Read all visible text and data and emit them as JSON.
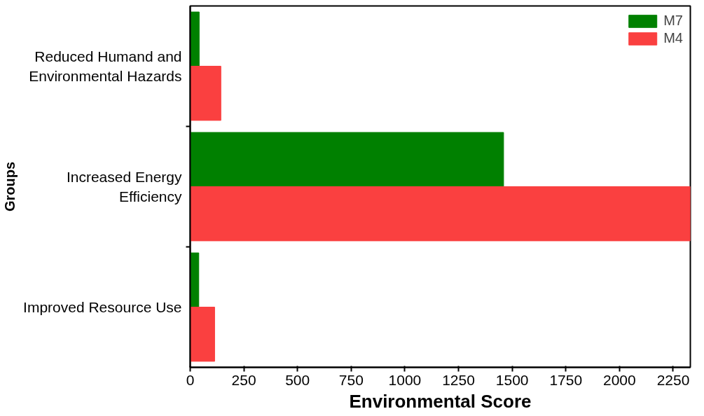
{
  "chart_data": {
    "type": "bar",
    "orientation": "horizontal",
    "xlabel": "Environmental Score",
    "ylabel": "Groups",
    "categories": [
      "Reduced Humand and Environmental Hazards",
      "Increased Energy Efficiency",
      "Improved Resource Use"
    ],
    "series": [
      {
        "name": "M7",
        "color": "#008000",
        "values": [
          42,
          1460,
          40
        ]
      },
      {
        "name": "M4",
        "color": "#fa4040",
        "values": [
          143,
          2330,
          114
        ]
      }
    ],
    "xlim": [
      0,
      2330
    ],
    "xticks": [
      0,
      250,
      500,
      750,
      1000,
      1250,
      1500,
      1750,
      2000,
      2250
    ],
    "grid": false,
    "legend": "top right"
  }
}
